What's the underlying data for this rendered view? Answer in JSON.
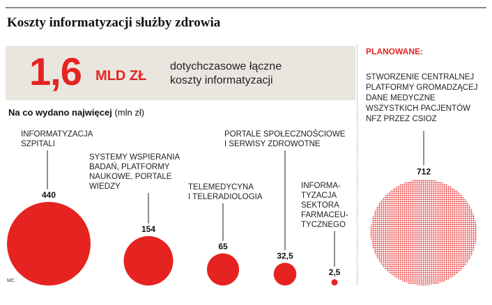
{
  "header": {
    "title": "Koszty informatyzacji służby zdrowia"
  },
  "summary": {
    "value": "1,6",
    "unit": "MLD ZŁ",
    "text_lines": [
      "dotychczasowe łączne",
      "koszty informatyzacji"
    ]
  },
  "subtitle": {
    "bold": "Na co wydano najwięcej",
    "unit": "(mln zł)"
  },
  "planned": {
    "heading": "PLANOWANE:",
    "text_lines": [
      "STWORZENIE CENTRALNEJ",
      "PLATFORMY GROMADZĄCEJ",
      "DANE MEDYCZNE",
      "WSZYSTKICH PACJENTÓW",
      "NFZ PRZEZ CSIOZ"
    ]
  },
  "source": "MC",
  "colors": {
    "accent": "#e52421",
    "box": "#e9e6df",
    "planned_dots": "#e52421"
  },
  "chart_data": {
    "type": "bubble",
    "title": "Na co wydano najwięcej (mln zł)",
    "unit": "mln zł",
    "series": [
      {
        "name": "Na co wydano najwięcej",
        "points": [
          {
            "label_lines": [
              "INFORMATYZACJA",
              "SZPITALI"
            ],
            "value": 440,
            "value_label": "440"
          },
          {
            "label_lines": [
              "SYSTEMY WSPIERANIA",
              "BADAŃ, PLATFORMY",
              "NAUKOWE, PORTALE",
              "WIEDZY"
            ],
            "value": 154,
            "value_label": "154"
          },
          {
            "label_lines": [
              "TELEMEDYCYNA",
              "I TELERADIOLOGIA"
            ],
            "value": 65,
            "value_label": "65"
          },
          {
            "label_lines": [
              "PORTALE SPOŁECZNOŚCIOWE",
              "I SERWISY ZDROWOTNE"
            ],
            "value": 32.5,
            "value_label": "32,5"
          },
          {
            "label_lines": [
              "INFORMA-",
              "TYZACJA",
              "SEKTORA",
              "FARMACEU-",
              "TYCZNEGO"
            ],
            "value": 2.5,
            "value_label": "2,5"
          }
        ]
      },
      {
        "name": "PLANOWANE:",
        "points": [
          {
            "label_lines": [
              "STWORZENIE CENTRALNEJ",
              "PLATFORMY GROMADZĄCEJ",
              "DANE MEDYCZNE",
              "WSZYSTKICH PACJENTÓW",
              "NFZ PRZEZ CSIOZ"
            ],
            "value": 712,
            "value_label": "712",
            "style": "dotted"
          }
        ]
      }
    ]
  }
}
